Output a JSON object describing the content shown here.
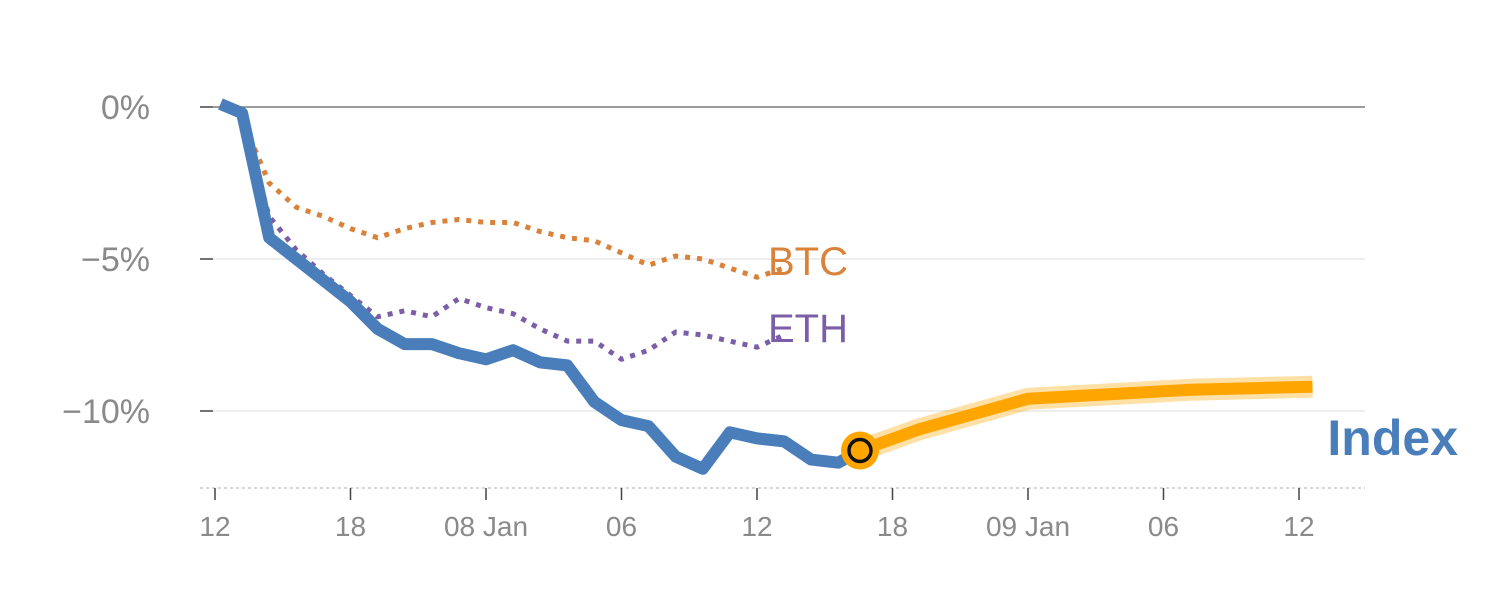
{
  "chart_data": {
    "type": "line",
    "title": "",
    "xlabel": "",
    "ylabel": "",
    "ylim": [
      -12.5,
      0.5
    ],
    "y_ticks": [
      {
        "value": 0,
        "label": "0%"
      },
      {
        "value": -5,
        "label": "−5%"
      },
      {
        "value": -10,
        "label": "−10%"
      }
    ],
    "x_ticks": [
      "12",
      "18",
      "08 Jan",
      "06",
      "12",
      "18",
      "09 Jan",
      "06",
      "12"
    ],
    "series": [
      {
        "name": "Index",
        "label": "Index",
        "color": "#4a7ebb",
        "style": "solid",
        "points": [
          [
            0.2,
            0.1
          ],
          [
            1.0,
            -0.2
          ],
          [
            2.0,
            -4.3
          ],
          [
            3.0,
            -5.0
          ],
          [
            4.0,
            -5.7
          ],
          [
            5.0,
            -6.4
          ],
          [
            6.0,
            -7.3
          ],
          [
            7.0,
            -7.8
          ],
          [
            8.0,
            -7.8
          ],
          [
            9.0,
            -8.1
          ],
          [
            10.0,
            -8.3
          ],
          [
            11.0,
            -8.0
          ],
          [
            12.0,
            -8.4
          ],
          [
            13.0,
            -8.5
          ],
          [
            14.0,
            -9.7
          ],
          [
            15.0,
            -10.3
          ],
          [
            16.0,
            -10.5
          ],
          [
            17.0,
            -11.5
          ],
          [
            18.0,
            -11.9
          ],
          [
            19.0,
            -10.7
          ],
          [
            20.0,
            -10.9
          ],
          [
            21.0,
            -11.0
          ],
          [
            22.0,
            -11.6
          ],
          [
            23.0,
            -11.7
          ],
          [
            23.8,
            -11.3
          ]
        ]
      },
      {
        "name": "BTC",
        "label": "BTC",
        "color": "#d9823a",
        "style": "dotted",
        "points": [
          [
            0.5,
            -0.1
          ],
          [
            1.0,
            -0.4
          ],
          [
            2.0,
            -2.5
          ],
          [
            3.0,
            -3.3
          ],
          [
            4.0,
            -3.6
          ],
          [
            5.0,
            -4.0
          ],
          [
            6.0,
            -4.3
          ],
          [
            7.0,
            -4.0
          ],
          [
            8.0,
            -3.8
          ],
          [
            9.0,
            -3.7
          ],
          [
            10.0,
            -3.8
          ],
          [
            11.0,
            -3.8
          ],
          [
            12.0,
            -4.1
          ],
          [
            13.0,
            -4.3
          ],
          [
            14.0,
            -4.4
          ],
          [
            15.0,
            -4.8
          ],
          [
            16.0,
            -5.2
          ],
          [
            17.0,
            -4.9
          ],
          [
            18.0,
            -5.0
          ],
          [
            19.0,
            -5.3
          ],
          [
            20.0,
            -5.6
          ],
          [
            21.0,
            -5.3
          ]
        ]
      },
      {
        "name": "ETH",
        "label": "ETH",
        "color": "#7b5ea7",
        "style": "dotted",
        "points": [
          [
            0.5,
            -0.1
          ],
          [
            1.0,
            -0.4
          ],
          [
            2.0,
            -3.6
          ],
          [
            3.0,
            -4.7
          ],
          [
            4.0,
            -5.5
          ],
          [
            5.0,
            -6.2
          ],
          [
            6.0,
            -6.9
          ],
          [
            7.0,
            -6.7
          ],
          [
            8.0,
            -6.9
          ],
          [
            9.0,
            -6.3
          ],
          [
            10.0,
            -6.6
          ],
          [
            11.0,
            -6.8
          ],
          [
            12.0,
            -7.3
          ],
          [
            13.0,
            -7.7
          ],
          [
            14.0,
            -7.7
          ],
          [
            15.0,
            -8.3
          ],
          [
            16.0,
            -8.0
          ],
          [
            17.0,
            -7.4
          ],
          [
            18.0,
            -7.5
          ],
          [
            19.0,
            -7.7
          ],
          [
            20.0,
            -7.9
          ],
          [
            21.0,
            -7.5
          ]
        ]
      },
      {
        "name": "Index forecast",
        "color": "#ffa500",
        "style": "band",
        "points": [
          [
            23.8,
            -11.3
          ],
          [
            26.0,
            -10.6
          ],
          [
            28.0,
            -10.1
          ],
          [
            30.0,
            -9.6
          ],
          [
            32.0,
            -9.5
          ],
          [
            34.0,
            -9.4
          ],
          [
            36.0,
            -9.3
          ],
          [
            40.5,
            -9.2
          ]
        ]
      }
    ],
    "marker": {
      "x": 23.8,
      "y": -11.3,
      "color": "#ffa500"
    },
    "x_tick_positions": [
      0,
      5,
      10,
      15,
      20,
      25,
      30,
      35,
      40
    ]
  }
}
